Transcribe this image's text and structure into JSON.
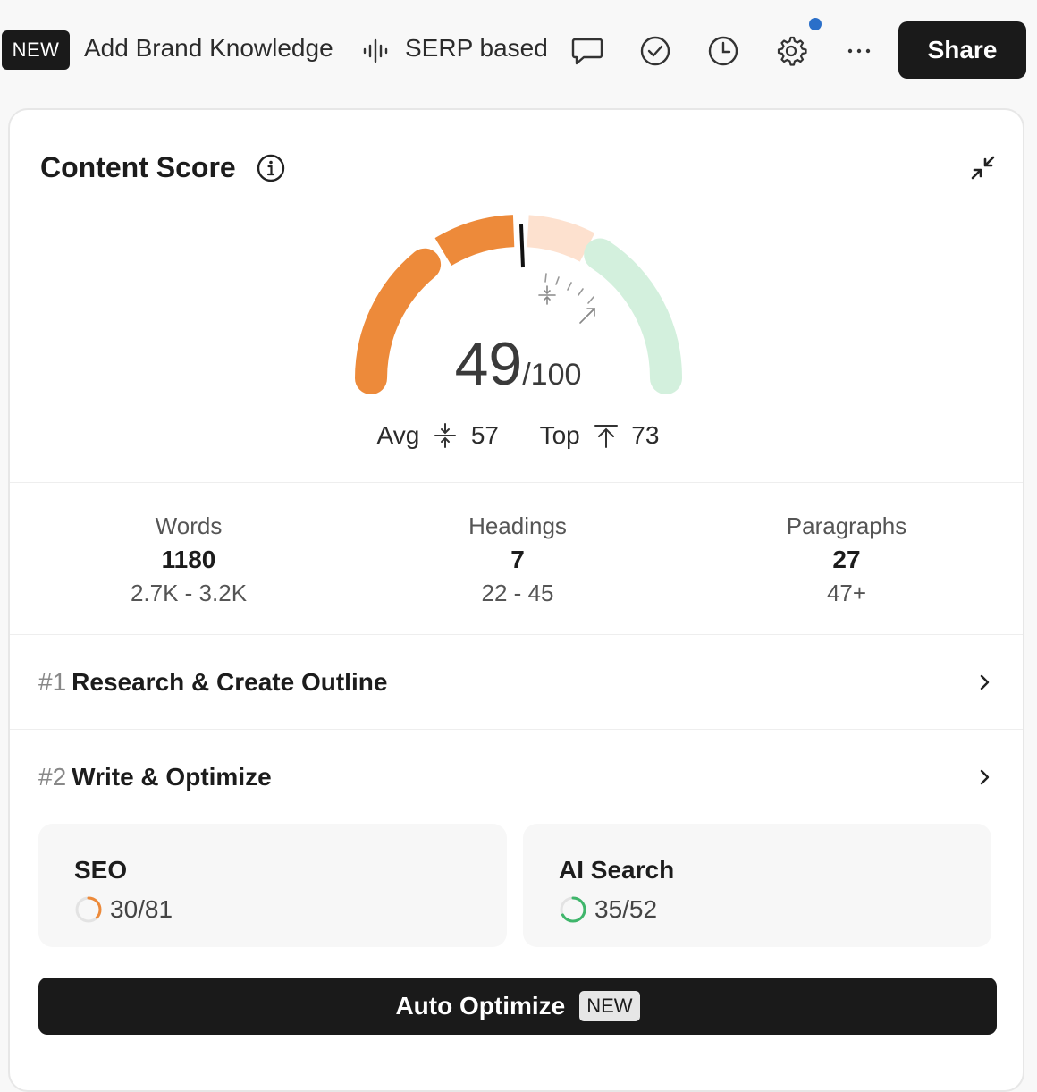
{
  "topbar": {
    "new_badge": "NEW",
    "brand_link": "Add Brand Knowledge",
    "serp_label": "SERP based",
    "share_label": "Share",
    "icons": [
      "comment-icon",
      "check-circle-icon",
      "clock-icon",
      "gear-icon",
      "more-icon"
    ],
    "notification_color": "#2a6fc9"
  },
  "content_score": {
    "title": "Content Score",
    "score": "49",
    "max": "/100",
    "score_value": 49,
    "avg_label": "Avg",
    "avg_value": "57",
    "top_label": "Top",
    "top_value": "73",
    "colors": {
      "filled": "#ed8a3a",
      "pending": "#fde1cf",
      "good": "#d3f0dd"
    }
  },
  "stats": [
    {
      "label": "Words",
      "value": "1180",
      "range": "2.7K - 3.2K"
    },
    {
      "label": "Headings",
      "value": "7",
      "range": "22 - 45"
    },
    {
      "label": "Paragraphs",
      "value": "27",
      "range": "47+"
    }
  ],
  "sections": [
    {
      "num": "#1",
      "title": "Research & Create Outline"
    },
    {
      "num": "#2",
      "title": "Write & Optimize"
    }
  ],
  "subscores": [
    {
      "title": "SEO",
      "value": "30/81",
      "fraction": 0.37,
      "color": "#ed8a3a"
    },
    {
      "title": "AI Search",
      "value": "35/52",
      "fraction": 0.67,
      "color": "#3fb66b"
    }
  ],
  "auto_optimize": {
    "label": "Auto Optimize",
    "badge": "NEW"
  }
}
